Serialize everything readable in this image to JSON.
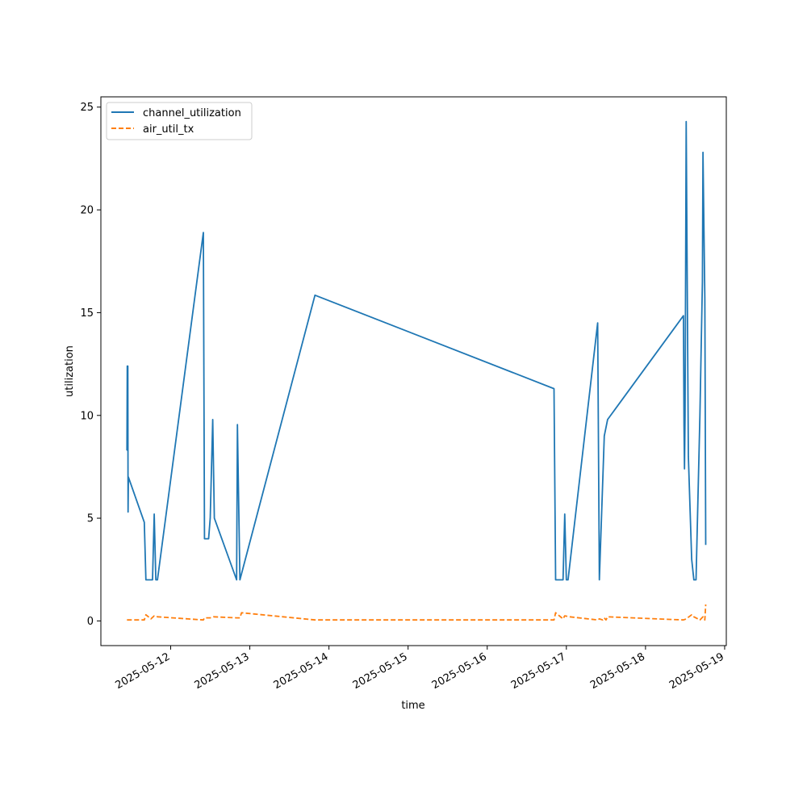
{
  "chart_data": {
    "type": "line",
    "title": "",
    "xlabel": "time",
    "ylabel": "utilization",
    "xlim": [
      "2025-05-11T02:50:00",
      "2025-05-19T00:30:00"
    ],
    "ylim": [
      -1.2,
      25.5
    ],
    "x_ticks": [
      "2025-05-12",
      "2025-05-13",
      "2025-05-14",
      "2025-05-15",
      "2025-05-16",
      "2025-05-17",
      "2025-05-18",
      "2025-05-19"
    ],
    "y_ticks": [
      0,
      5,
      10,
      15,
      20,
      25
    ],
    "grid": false,
    "legend": "top-left",
    "series": [
      {
        "name": "channel_utilization",
        "color": "#1f77b4",
        "style": "solid",
        "points": [
          [
            "2025-05-11T10:45",
            8.3
          ],
          [
            "2025-05-11T10:50",
            12.4
          ],
          [
            "2025-05-11T10:55",
            8.3
          ],
          [
            "2025-05-11T11:00",
            12.4
          ],
          [
            "2025-05-11T11:05",
            5.3
          ],
          [
            "2025-05-11T11:10",
            7.0
          ],
          [
            "2025-05-11T16:00",
            4.8
          ],
          [
            "2025-05-11T16:30",
            2.0
          ],
          [
            "2025-05-11T18:30",
            2.0
          ],
          [
            "2025-05-11T19:00",
            5.2
          ],
          [
            "2025-05-11T19:30",
            2.0
          ],
          [
            "2025-05-11T20:00",
            2.0
          ],
          [
            "2025-05-12T09:55",
            18.9
          ],
          [
            "2025-05-12T10:15",
            4.0
          ],
          [
            "2025-05-12T11:30",
            4.0
          ],
          [
            "2025-05-12T12:00",
            5.0
          ],
          [
            "2025-05-12T12:45",
            9.8
          ],
          [
            "2025-05-12T13:15",
            5.0
          ],
          [
            "2025-05-12T20:00",
            2.0
          ],
          [
            "2025-05-12T20:15",
            9.55
          ],
          [
            "2025-05-12T21:00",
            2.0
          ],
          [
            "2025-05-13T19:45",
            15.85
          ],
          [
            "2025-05-16T20:15",
            11.3
          ],
          [
            "2025-05-16T20:45",
            2.0
          ],
          [
            "2025-05-16T23:00",
            2.0
          ],
          [
            "2025-05-16T23:30",
            5.2
          ],
          [
            "2025-05-17T00:00",
            2.0
          ],
          [
            "2025-05-17T00:30",
            2.0
          ],
          [
            "2025-05-17T09:30",
            14.5
          ],
          [
            "2025-05-17T10:00",
            2.0
          ],
          [
            "2025-05-17T11:30",
            9.0
          ],
          [
            "2025-05-17T12:30",
            9.8
          ],
          [
            "2025-05-18T11:30",
            14.85
          ],
          [
            "2025-05-18T11:40",
            9.5
          ],
          [
            "2025-05-18T11:50",
            7.4
          ],
          [
            "2025-05-18T12:00",
            10.0
          ],
          [
            "2025-05-18T12:20",
            24.3
          ],
          [
            "2025-05-18T13:00",
            8.0
          ],
          [
            "2025-05-18T14:00",
            3.0
          ],
          [
            "2025-05-18T14:40",
            2.0
          ],
          [
            "2025-05-18T15:20",
            2.0
          ],
          [
            "2025-05-18T16:30",
            10.0
          ],
          [
            "2025-05-18T17:15",
            16.5
          ],
          [
            "2025-05-18T17:25",
            22.8
          ],
          [
            "2025-05-18T18:00",
            15.7
          ],
          [
            "2025-05-18T18:15",
            3.7
          ]
        ]
      },
      {
        "name": "air_util_tx",
        "color": "#ff7f0e",
        "style": "dashed",
        "points": [
          [
            "2025-05-11T10:45",
            0.05
          ],
          [
            "2025-05-11T16:00",
            0.05
          ],
          [
            "2025-05-11T16:30",
            0.3
          ],
          [
            "2025-05-11T18:00",
            0.1
          ],
          [
            "2025-05-11T19:00",
            0.25
          ],
          [
            "2025-05-11T20:00",
            0.2
          ],
          [
            "2025-05-12T09:55",
            0.05
          ],
          [
            "2025-05-12T10:15",
            0.15
          ],
          [
            "2025-05-12T12:00",
            0.15
          ],
          [
            "2025-05-12T13:00",
            0.2
          ],
          [
            "2025-05-12T20:00",
            0.15
          ],
          [
            "2025-05-12T21:00",
            0.15
          ],
          [
            "2025-05-12T21:30",
            0.4
          ],
          [
            "2025-05-13T19:45",
            0.05
          ],
          [
            "2025-05-16T20:15",
            0.05
          ],
          [
            "2025-05-16T20:45",
            0.4
          ],
          [
            "2025-05-16T23:00",
            0.1
          ],
          [
            "2025-05-16T23:30",
            0.25
          ],
          [
            "2025-05-17T01:00",
            0.2
          ],
          [
            "2025-05-17T09:30",
            0.05
          ],
          [
            "2025-05-17T10:00",
            0.1
          ],
          [
            "2025-05-17T11:00",
            0.05
          ],
          [
            "2025-05-17T11:30",
            0.15
          ],
          [
            "2025-05-17T12:00",
            0.05
          ],
          [
            "2025-05-17T12:30",
            0.2
          ],
          [
            "2025-05-18T11:30",
            0.05
          ],
          [
            "2025-05-18T12:20",
            0.1
          ],
          [
            "2025-05-18T14:00",
            0.3
          ],
          [
            "2025-05-18T14:40",
            0.2
          ],
          [
            "2025-05-18T16:30",
            0.05
          ],
          [
            "2025-05-18T17:25",
            0.2
          ],
          [
            "2025-05-18T18:00",
            0.05
          ],
          [
            "2025-05-18T18:15",
            0.8
          ]
        ]
      }
    ]
  }
}
